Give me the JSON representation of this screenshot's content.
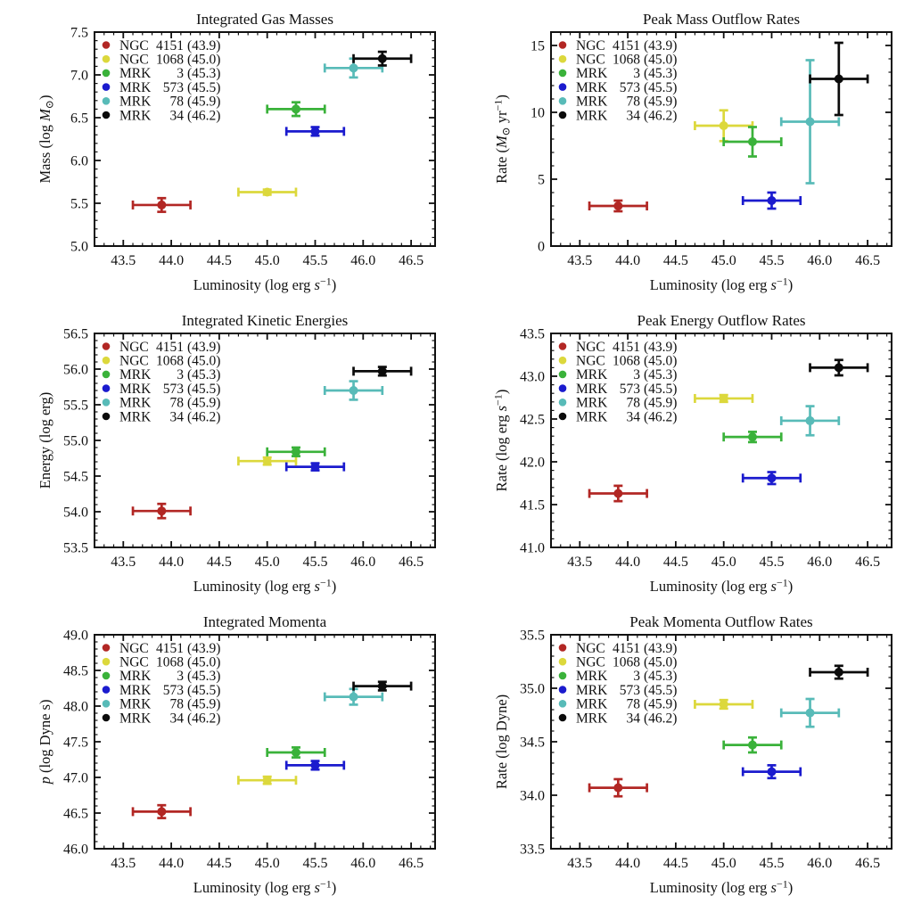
{
  "figure": {
    "background": "#ffffff",
    "grid": "2 columns x 3 rows",
    "x_axis_shared_label": "Luminosity (log erg s−1)"
  },
  "legend": {
    "position": "upper-left inside axes",
    "entries": [
      {
        "prefix": "NGC",
        "number": "4151",
        "lum": "(43.9)",
        "name": "NGC 4151",
        "color": "#B22724"
      },
      {
        "prefix": "NGC",
        "number": "1068",
        "lum": "(45.0)",
        "name": "NGC 1068",
        "color": "#DCD83C"
      },
      {
        "prefix": "MRK",
        "number": "3",
        "lum": "(45.3)",
        "name": "MRK 3",
        "color": "#3AB23A"
      },
      {
        "prefix": "MRK",
        "number": "573",
        "lum": "(45.5)",
        "name": "MRK 573",
        "color": "#1B1BCE"
      },
      {
        "prefix": "MRK",
        "number": "78",
        "lum": "(45.9)",
        "name": "MRK 78",
        "color": "#58BBB8"
      },
      {
        "prefix": "MRK",
        "number": "34",
        "lum": "(46.2)",
        "name": "MRK 34",
        "color": "#0B0B0B"
      }
    ]
  },
  "chart_data": [
    {
      "type": "scatter",
      "title": "Integrated Gas Masses",
      "xlabel": "Luminosity (log erg *s*^{−1})",
      "ylabel": "Mass (log *M*_{⊙})",
      "xlim": [
        43.2,
        46.75
      ],
      "ylim": [
        5.0,
        7.5
      ],
      "xtick_values": [
        43.5,
        44.0,
        44.5,
        45.0,
        45.5,
        46.0,
        46.5
      ],
      "xtick_labels": [
        "43.5",
        "44.0",
        "44.5",
        "45.0",
        "45.5",
        "46.0",
        "46.5"
      ],
      "ytick_values": [
        5.0,
        5.5,
        6.0,
        6.5,
        7.0,
        7.5
      ],
      "ytick_labels": [
        "5.0",
        "5.5",
        "6.0",
        "6.5",
        "7.0",
        "7.5"
      ],
      "x_minor_step": 0.1,
      "y_minor_step": 0.1,
      "points": [
        {
          "name": "NGC 4151",
          "x": 43.9,
          "y": 5.48,
          "xerr": 0.3,
          "yerr": 0.08
        },
        {
          "name": "NGC 1068",
          "x": 45.0,
          "y": 5.63,
          "xerr": 0.3,
          "yerr": 0.03
        },
        {
          "name": "MRK 3",
          "x": 45.3,
          "y": 6.6,
          "xerr": 0.3,
          "yerr": 0.08
        },
        {
          "name": "MRK 573",
          "x": 45.5,
          "y": 6.34,
          "xerr": 0.3,
          "yerr": 0.05
        },
        {
          "name": "MRK 78",
          "x": 45.9,
          "y": 7.08,
          "xerr": 0.3,
          "yerr": 0.11
        },
        {
          "name": "MRK 34",
          "x": 46.2,
          "y": 7.19,
          "xerr": 0.3,
          "yerr": 0.08
        }
      ]
    },
    {
      "type": "scatter",
      "title": "Peak Mass Outflow Rates",
      "xlabel": "Luminosity (log erg *s*^{−1})",
      "ylabel": "Rate (*M*_{⊙} yr^{−1})",
      "xlim": [
        43.2,
        46.75
      ],
      "ylim": [
        0,
        16
      ],
      "xtick_values": [
        43.5,
        44.0,
        44.5,
        45.0,
        45.5,
        46.0,
        46.5
      ],
      "xtick_labels": [
        "43.5",
        "44.0",
        "44.5",
        "45.0",
        "45.5",
        "46.0",
        "46.5"
      ],
      "ytick_values": [
        0,
        5,
        10,
        15
      ],
      "ytick_labels": [
        "0",
        "5",
        "10",
        "15"
      ],
      "x_minor_step": 0.1,
      "y_minor_step": 1,
      "points": [
        {
          "name": "NGC 4151",
          "x": 43.9,
          "y": 3.0,
          "xerr": 0.3,
          "yerr": 0.4
        },
        {
          "name": "NGC 1068",
          "x": 45.0,
          "y": 9.0,
          "xerr": 0.3,
          "yerr": 1.15
        },
        {
          "name": "MRK 3",
          "x": 45.3,
          "y": 7.8,
          "xerr": 0.3,
          "yerr": 1.1
        },
        {
          "name": "MRK 573",
          "x": 45.5,
          "y": 3.4,
          "xerr": 0.3,
          "yerr": 0.6
        },
        {
          "name": "MRK 78",
          "x": 45.9,
          "y": 9.3,
          "xerr": 0.3,
          "yerr": 4.6
        },
        {
          "name": "MRK 34",
          "x": 46.2,
          "y": 12.5,
          "xerr": 0.3,
          "yerr": 2.7
        }
      ]
    },
    {
      "type": "scatter",
      "title": "Integrated Kinetic Energies",
      "xlabel": "Luminosity (log erg *s*^{−1})",
      "ylabel": "Energy (log erg)",
      "xlim": [
        43.2,
        46.75
      ],
      "ylim": [
        53.5,
        56.5
      ],
      "xtick_values": [
        43.5,
        44.0,
        44.5,
        45.0,
        45.5,
        46.0,
        46.5
      ],
      "xtick_labels": [
        "43.5",
        "44.0",
        "44.5",
        "45.0",
        "45.5",
        "46.0",
        "46.5"
      ],
      "ytick_values": [
        53.5,
        54.0,
        54.5,
        55.0,
        55.5,
        56.0,
        56.5
      ],
      "ytick_labels": [
        "53.5",
        "54.0",
        "54.5",
        "55.0",
        "55.5",
        "56.0",
        "56.5"
      ],
      "x_minor_step": 0.1,
      "y_minor_step": 0.1,
      "points": [
        {
          "name": "NGC 4151",
          "x": 43.9,
          "y": 54.01,
          "xerr": 0.3,
          "yerr": 0.1
        },
        {
          "name": "NGC 1068",
          "x": 45.0,
          "y": 54.71,
          "xerr": 0.3,
          "yerr": 0.05
        },
        {
          "name": "MRK 3",
          "x": 45.3,
          "y": 54.84,
          "xerr": 0.3,
          "yerr": 0.06
        },
        {
          "name": "MRK 573",
          "x": 45.5,
          "y": 54.63,
          "xerr": 0.3,
          "yerr": 0.05
        },
        {
          "name": "MRK 78",
          "x": 45.9,
          "y": 55.7,
          "xerr": 0.3,
          "yerr": 0.13
        },
        {
          "name": "MRK 34",
          "x": 46.2,
          "y": 55.97,
          "xerr": 0.3,
          "yerr": 0.06
        }
      ]
    },
    {
      "type": "scatter",
      "title": "Peak Energy Outflow Rates",
      "xlabel": "Luminosity (log erg *s*^{−1})",
      "ylabel": "Rate (log erg *s*^{−1})",
      "xlim": [
        43.2,
        46.75
      ],
      "ylim": [
        41.0,
        43.5
      ],
      "xtick_values": [
        43.5,
        44.0,
        44.5,
        45.0,
        45.5,
        46.0,
        46.5
      ],
      "xtick_labels": [
        "43.5",
        "44.0",
        "44.5",
        "45.0",
        "45.5",
        "46.0",
        "46.5"
      ],
      "ytick_values": [
        41.0,
        41.5,
        42.0,
        42.5,
        43.0,
        43.5
      ],
      "ytick_labels": [
        "41.0",
        "41.5",
        "42.0",
        "42.5",
        "43.0",
        "43.5"
      ],
      "x_minor_step": 0.1,
      "y_minor_step": 0.1,
      "points": [
        {
          "name": "NGC 4151",
          "x": 43.9,
          "y": 41.63,
          "xerr": 0.3,
          "yerr": 0.09
        },
        {
          "name": "NGC 1068",
          "x": 45.0,
          "y": 42.74,
          "xerr": 0.3,
          "yerr": 0.04
        },
        {
          "name": "MRK 3",
          "x": 45.3,
          "y": 42.29,
          "xerr": 0.3,
          "yerr": 0.06
        },
        {
          "name": "MRK 573",
          "x": 45.5,
          "y": 41.81,
          "xerr": 0.3,
          "yerr": 0.07
        },
        {
          "name": "MRK 78",
          "x": 45.9,
          "y": 42.48,
          "xerr": 0.3,
          "yerr": 0.17
        },
        {
          "name": "MRK 34",
          "x": 46.2,
          "y": 43.1,
          "xerr": 0.3,
          "yerr": 0.09
        }
      ]
    },
    {
      "type": "scatter",
      "title": "Integrated Momenta",
      "xlabel": "Luminosity (log erg *s*^{−1})",
      "ylabel": "*p* (log Dyne s)",
      "xlim": [
        43.2,
        46.75
      ],
      "ylim": [
        46.0,
        49.0
      ],
      "xtick_values": [
        43.5,
        44.0,
        44.5,
        45.0,
        45.5,
        46.0,
        46.5
      ],
      "xtick_labels": [
        "43.5",
        "44.0",
        "44.5",
        "45.0",
        "45.5",
        "46.0",
        "46.5"
      ],
      "ytick_values": [
        46.0,
        46.5,
        47.0,
        47.5,
        48.0,
        48.5,
        49.0
      ],
      "ytick_labels": [
        "46.0",
        "46.5",
        "47.0",
        "47.5",
        "48.0",
        "48.5",
        "49.0"
      ],
      "x_minor_step": 0.1,
      "y_minor_step": 0.1,
      "points": [
        {
          "name": "NGC 4151",
          "x": 43.9,
          "y": 46.52,
          "xerr": 0.3,
          "yerr": 0.09
        },
        {
          "name": "NGC 1068",
          "x": 45.0,
          "y": 46.96,
          "xerr": 0.3,
          "yerr": 0.05
        },
        {
          "name": "MRK 3",
          "x": 45.3,
          "y": 47.35,
          "xerr": 0.3,
          "yerr": 0.07
        },
        {
          "name": "MRK 573",
          "x": 45.5,
          "y": 47.17,
          "xerr": 0.3,
          "yerr": 0.06
        },
        {
          "name": "MRK 78",
          "x": 45.9,
          "y": 48.13,
          "xerr": 0.3,
          "yerr": 0.11
        },
        {
          "name": "MRK 34",
          "x": 46.2,
          "y": 48.28,
          "xerr": 0.3,
          "yerr": 0.06
        }
      ]
    },
    {
      "type": "scatter",
      "title": "Peak Momenta Outflow Rates",
      "xlabel": "Luminosity (log erg *s*^{−1})",
      "ylabel": "Rate (log Dyne)",
      "xlim": [
        43.2,
        46.75
      ],
      "ylim": [
        33.5,
        35.5
      ],
      "xtick_values": [
        43.5,
        44.0,
        44.5,
        45.0,
        45.5,
        46.0,
        46.5
      ],
      "xtick_labels": [
        "43.5",
        "44.0",
        "44.5",
        "45.0",
        "45.5",
        "46.0",
        "46.5"
      ],
      "ytick_values": [
        33.5,
        34.0,
        34.5,
        35.0,
        35.5
      ],
      "ytick_labels": [
        "33.5",
        "34.0",
        "34.5",
        "35.0",
        "35.5"
      ],
      "x_minor_step": 0.1,
      "y_minor_step": 0.1,
      "points": [
        {
          "name": "NGC 4151",
          "x": 43.9,
          "y": 34.07,
          "xerr": 0.3,
          "yerr": 0.08
        },
        {
          "name": "NGC 1068",
          "x": 45.0,
          "y": 34.85,
          "xerr": 0.3,
          "yerr": 0.04
        },
        {
          "name": "MRK 3",
          "x": 45.3,
          "y": 34.47,
          "xerr": 0.3,
          "yerr": 0.07
        },
        {
          "name": "MRK 573",
          "x": 45.5,
          "y": 34.22,
          "xerr": 0.3,
          "yerr": 0.06
        },
        {
          "name": "MRK 78",
          "x": 45.9,
          "y": 34.77,
          "xerr": 0.3,
          "yerr": 0.13
        },
        {
          "name": "MRK 34",
          "x": 46.2,
          "y": 35.15,
          "xerr": 0.3,
          "yerr": 0.06
        }
      ]
    }
  ]
}
